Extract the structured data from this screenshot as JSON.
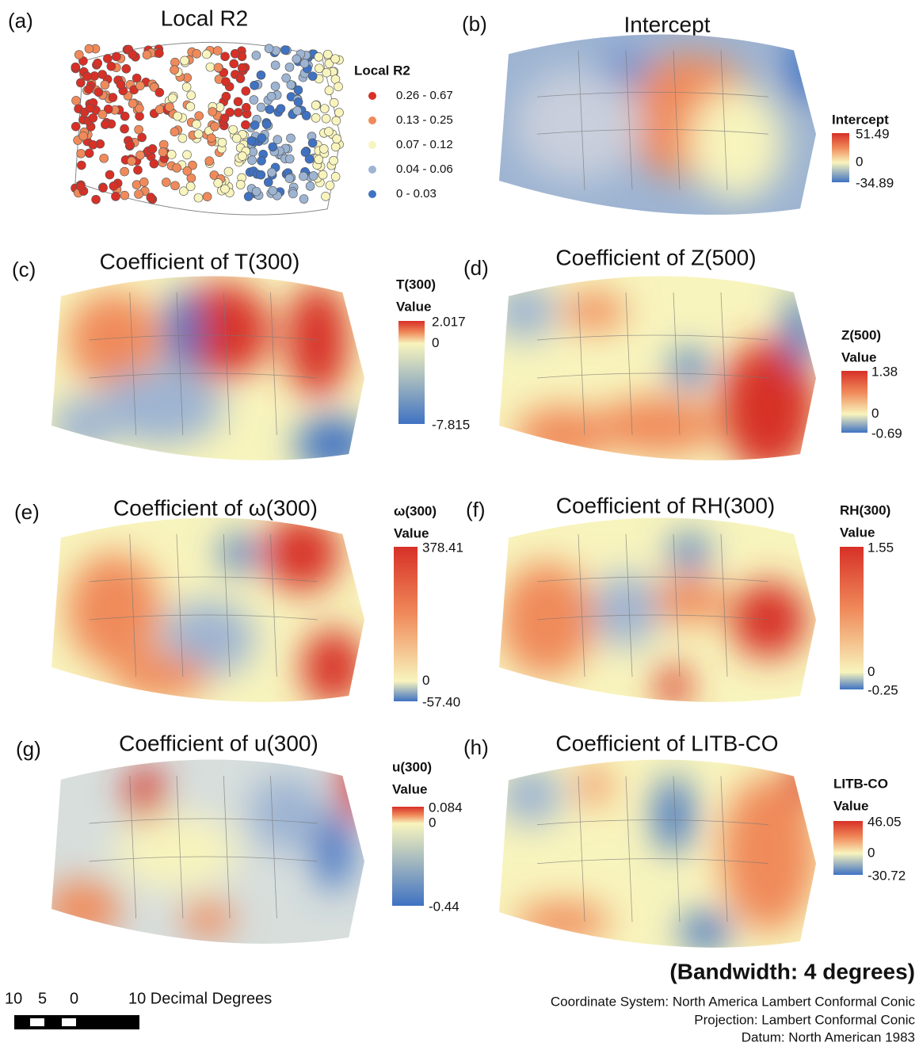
{
  "panels": [
    {
      "letter": "(a)",
      "title": "Local R2",
      "legend_title": "Local R2",
      "classes": [
        "0.26 - 0.67",
        "0.13 - 0.25",
        "0.07 - 0.12",
        "0.04 - 0.06",
        "0 - 0.03"
      ]
    },
    {
      "letter": "(b)",
      "title": "Intercept",
      "legend_title": "Intercept",
      "legend_labels": [
        "51.49",
        "0",
        "-34.89"
      ]
    },
    {
      "letter": "(c)",
      "title": "Coefficient of T(300)",
      "legend_title": "T(300)",
      "legend_subtitle": "Value",
      "legend_labels": [
        "2.017",
        "0",
        "-7.815"
      ]
    },
    {
      "letter": "(d)",
      "title": "Coefficient of Z(500)",
      "legend_title": "Z(500)",
      "legend_subtitle": "Value",
      "legend_labels": [
        "1.38",
        "0",
        "-0.69"
      ]
    },
    {
      "letter": "(e)",
      "title": "Coefficient of ω(300)",
      "legend_title": "ω(300)",
      "legend_subtitle": "Value",
      "legend_labels": [
        "378.41",
        "0",
        "-57.40"
      ]
    },
    {
      "letter": "(f)",
      "title": "Coefficient of RH(300)",
      "legend_title": "RH(300)",
      "legend_subtitle": "Value",
      "legend_labels": [
        "1.55",
        "0",
        "-0.25"
      ]
    },
    {
      "letter": "(g)",
      "title": "Coefficient of u(300)",
      "legend_title": "u(300)",
      "legend_subtitle": "Value",
      "legend_labels": [
        "0.084",
        "0",
        "-0.44"
      ]
    },
    {
      "letter": "(h)",
      "title": "Coefficient of LITB-CO",
      "legend_title": "LITB-CO",
      "legend_subtitle": "Value",
      "legend_labels": [
        "46.05",
        "0",
        "-30.72"
      ]
    }
  ],
  "bandwidth": "(Bandwidth: 4 degrees)",
  "scale_bar": {
    "labels": [
      "10",
      "5",
      "0",
      "10 Decimal Degrees"
    ]
  },
  "credits": [
    "Coordinate System: North America Lambert Conformal Conic",
    "Projection: Lambert Conformal Conic",
    "Datum: North American 1983"
  ]
}
